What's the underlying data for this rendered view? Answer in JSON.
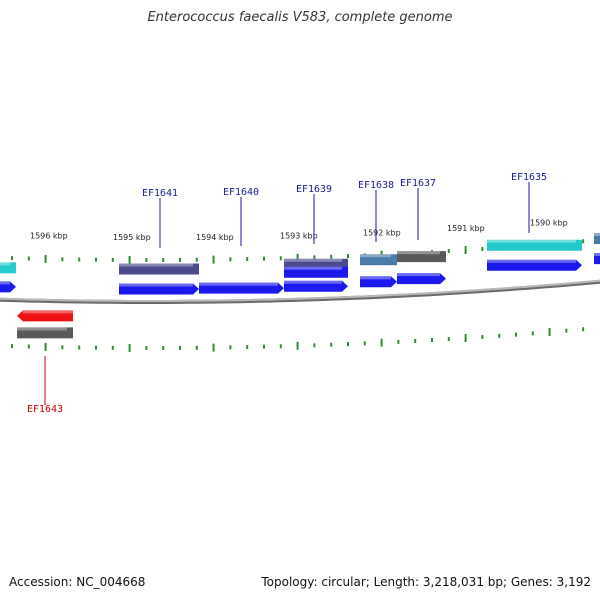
{
  "title": "Enterococcus faecalis V583, complete genome",
  "footer": {
    "accession": "Accession: NC_004668",
    "summary": "Topology: circular; Length: 3,218,031 bp; Genes: 3,192"
  },
  "colors": {
    "backbone": "#8c8c8c",
    "tick": "#2e8b2e",
    "gene_blue": "#1a1aee",
    "gene_slate": "#4a4a8c",
    "gene_cyan": "#22cccc",
    "gene_steel": "#4a7aa8",
    "gene_gray": "#5a5a5a",
    "gene_red": "#ee1111",
    "label_blue": "#1a1a99",
    "label_red": "#cc0000"
  },
  "scale_labels": [
    "1596 kbp",
    "1595 kbp",
    "1594 kbp",
    "1593 kbp",
    "1592 kbp",
    "1591 kbp",
    "1590 kbp"
  ],
  "gene_labels": [
    {
      "name": "EF1641",
      "color": "label_blue"
    },
    {
      "name": "EF1640",
      "color": "label_blue"
    },
    {
      "name": "EF1639",
      "color": "label_blue"
    },
    {
      "name": "EF1638",
      "color": "label_blue"
    },
    {
      "name": "EF1637",
      "color": "label_blue"
    },
    {
      "name": "EF1635",
      "color": "label_blue"
    },
    {
      "name": "EF1643",
      "color": "label_red"
    }
  ]
}
